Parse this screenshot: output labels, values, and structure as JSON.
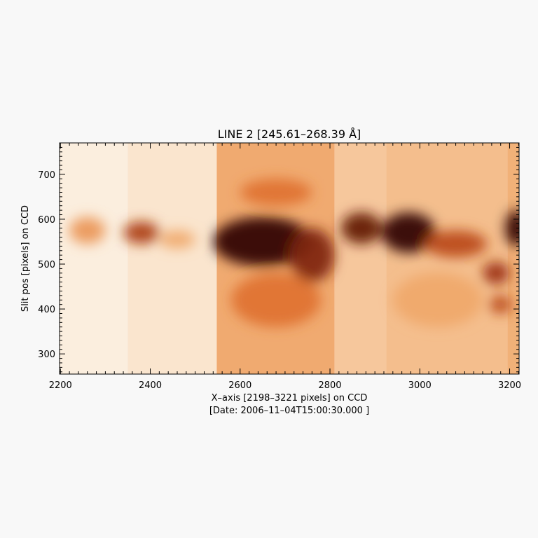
{
  "chart_data": {
    "type": "heatmap",
    "title": "LINE 2    [245.61–268.39 Å]",
    "xlabel": "X–axis [2198–3221 pixels] on CCD",
    "xlabel2": "[Date: 2006–11–04T15:00:30.000 ]",
    "ylabel": "Slit pos [pixels] on CCD",
    "xlim": [
      2198,
      3221
    ],
    "ylim": [
      255,
      770
    ],
    "x_ticks": [
      2200,
      2400,
      2600,
      2800,
      3000,
      3200
    ],
    "y_ticks": [
      300,
      400,
      500,
      600,
      700
    ],
    "x_tick_labels": [
      "2200",
      "2400",
      "2600",
      "2800",
      "3000",
      "3200"
    ],
    "y_tick_labels": [
      "300",
      "400",
      "500",
      "600",
      "700"
    ],
    "colormap": [
      "#fdf8f2",
      "#f9d9b9",
      "#f0a86a",
      "#d9601d",
      "#9a2c0a",
      "#2a0602"
    ],
    "intensity_scale": [
      0,
      1
    ],
    "columns": [
      {
        "x0": 2198,
        "x1": 2350,
        "level": 0.08
      },
      {
        "x0": 2350,
        "x1": 2548,
        "level": 0.14
      },
      {
        "x0": 2548,
        "x1": 2810,
        "level": 0.42
      },
      {
        "x0": 2810,
        "x1": 2925,
        "level": 0.3
      },
      {
        "x0": 2925,
        "x1": 3195,
        "level": 0.34
      },
      {
        "x0": 3195,
        "x1": 3221,
        "level": 0.4
      }
    ],
    "features": [
      {
        "x": 2260,
        "y": 575,
        "sx": 40,
        "sy": 30,
        "level": 0.45
      },
      {
        "x": 2380,
        "y": 570,
        "sx": 40,
        "sy": 25,
        "level": 0.75
      },
      {
        "x": 2460,
        "y": 555,
        "sx": 40,
        "sy": 20,
        "level": 0.4
      },
      {
        "x": 2650,
        "y": 550,
        "sx": 110,
        "sy": 55,
        "level": 1.0
      },
      {
        "x": 2760,
        "y": 520,
        "sx": 50,
        "sy": 60,
        "level": 0.85
      },
      {
        "x": 2870,
        "y": 580,
        "sx": 45,
        "sy": 35,
        "level": 0.9
      },
      {
        "x": 2975,
        "y": 570,
        "sx": 60,
        "sy": 45,
        "level": 1.0
      },
      {
        "x": 3080,
        "y": 545,
        "sx": 70,
        "sy": 30,
        "level": 0.7
      },
      {
        "x": 3170,
        "y": 480,
        "sx": 30,
        "sy": 25,
        "level": 0.8
      },
      {
        "x": 3215,
        "y": 580,
        "sx": 25,
        "sy": 40,
        "level": 1.0
      },
      {
        "x": 3180,
        "y": 410,
        "sx": 25,
        "sy": 20,
        "level": 0.7
      },
      {
        "x": 2680,
        "y": 660,
        "sx": 80,
        "sy": 30,
        "level": 0.55
      },
      {
        "x": 2680,
        "y": 420,
        "sx": 100,
        "sy": 60,
        "level": 0.55
      },
      {
        "x": 3040,
        "y": 420,
        "sx": 100,
        "sy": 60,
        "level": 0.4
      }
    ]
  }
}
